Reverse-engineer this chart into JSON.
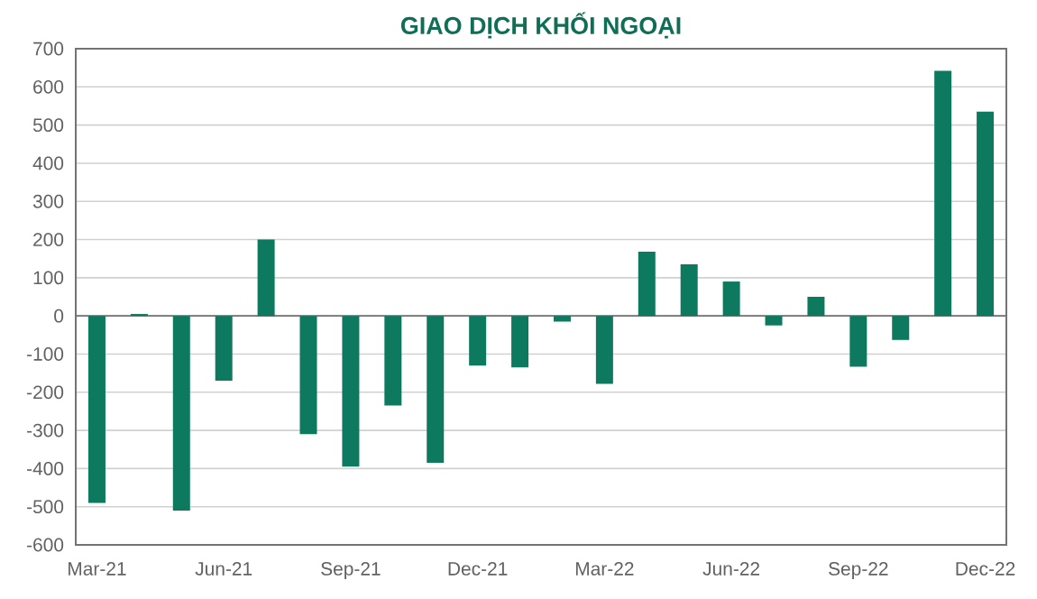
{
  "chart_data": {
    "type": "bar",
    "title": "GIAO DỊCH KHỐI NGOẠI",
    "categories": [
      "Mar-21",
      null,
      null,
      "Jun-21",
      null,
      null,
      "Sep-21",
      null,
      null,
      "Dec-21",
      null,
      null,
      "Mar-22",
      null,
      null,
      "Jun-22",
      null,
      null,
      "Sep-22",
      null,
      null,
      "Dec-22"
    ],
    "values": [
      -490,
      5,
      -510,
      -170,
      200,
      -310,
      -395,
      -235,
      -385,
      -130,
      -135,
      -15,
      -178,
      168,
      135,
      90,
      -25,
      50,
      -133,
      -63,
      642,
      535
    ],
    "color": "#0d7a5f",
    "ylim": [
      -600,
      700
    ],
    "yticks": [
      -600,
      -500,
      -400,
      -300,
      -200,
      -100,
      0,
      100,
      200,
      300,
      400,
      500,
      600,
      700
    ],
    "grid": "y"
  }
}
